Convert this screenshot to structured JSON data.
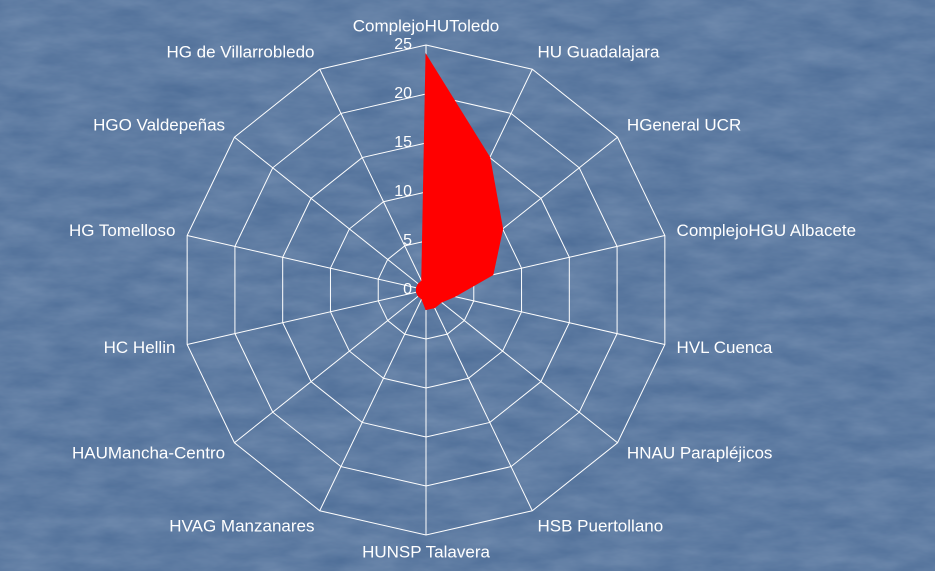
{
  "chart_data": {
    "type": "radar",
    "categories": [
      "ComplejoHUToledo",
      "HU Guadalajara",
      "HGeneral UCR",
      "ComplejoHGU Albacete",
      "HVL Cuenca",
      "HNAU Parapléjicos",
      "HSB Puertollano",
      "HUNSP Talavera",
      "HVAG Manzanares",
      "HAUMancha-Centro",
      "HC Hellin",
      "HG Tomelloso",
      "HGO Valdepeñas",
      "HG de Villarrobledo"
    ],
    "series": [
      {
        "color": "#ff0000",
        "values": [
          24,
          15,
          10,
          7,
          3,
          2,
          2,
          2,
          1,
          1,
          1,
          1,
          1,
          1
        ]
      }
    ],
    "ylim": [
      0,
      25
    ],
    "yticks": [
      0,
      5,
      10,
      15,
      20,
      25
    ],
    "grid": true
  }
}
